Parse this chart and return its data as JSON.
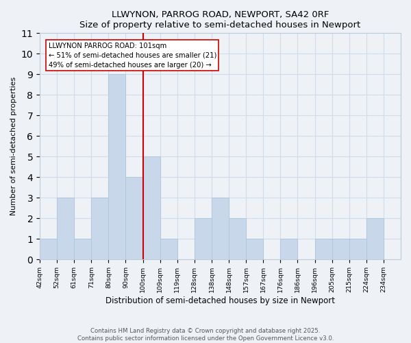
{
  "title": "LLWYNON, PARROG ROAD, NEWPORT, SA42 0RF",
  "subtitle": "Size of property relative to semi-detached houses in Newport",
  "xlabel": "Distribution of semi-detached houses by size in Newport",
  "ylabel": "Number of semi-detached properties",
  "bin_labels": [
    "42sqm",
    "52sqm",
    "61sqm",
    "71sqm",
    "80sqm",
    "90sqm",
    "100sqm",
    "109sqm",
    "119sqm",
    "128sqm",
    "138sqm",
    "148sqm",
    "157sqm",
    "167sqm",
    "176sqm",
    "186sqm",
    "196sqm",
    "205sqm",
    "215sqm",
    "224sqm",
    "234sqm"
  ],
  "counts": [
    1,
    3,
    1,
    3,
    9,
    4,
    5,
    1,
    0,
    2,
    3,
    2,
    1,
    0,
    1,
    0,
    1,
    1,
    1,
    2,
    0
  ],
  "bar_color": "#c8d8ea",
  "bar_edgecolor": "#b0c8dc",
  "grid_color": "#d0dce8",
  "vline_bin": 6,
  "vline_color": "#cc0000",
  "annotation_title": "LLWYNON PARROG ROAD: 101sqm",
  "annotation_line1": "← 51% of semi-detached houses are smaller (21)",
  "annotation_line2": "49% of semi-detached houses are larger (20) →",
  "annotation_box_edgecolor": "#cc0000",
  "ylim": [
    0,
    11
  ],
  "yticks": [
    0,
    1,
    2,
    3,
    4,
    5,
    6,
    7,
    8,
    9,
    10,
    11
  ],
  "footnote1": "Contains HM Land Registry data © Crown copyright and database right 2025.",
  "footnote2": "Contains public sector information licensed under the Open Government Licence v3.0.",
  "bg_color": "#eef2f7",
  "plot_bg_color": "#eef2f7"
}
